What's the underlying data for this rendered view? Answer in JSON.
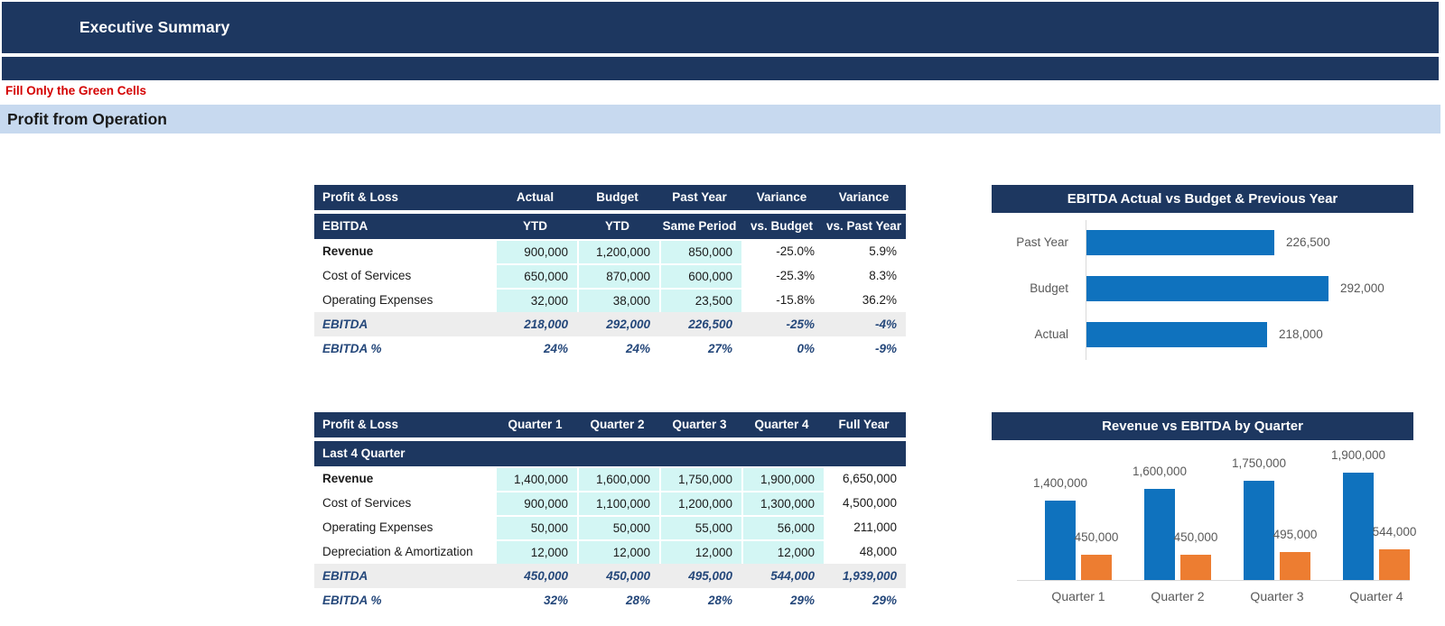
{
  "page": {
    "title": "Executive Summary",
    "note": "Fill Only the Green Cells",
    "section": "Profit from Operation"
  },
  "colors": {
    "header_navy": "#1d3760",
    "section_band_blue": "#c7d9ef",
    "note_red": "#d40000",
    "input_cell_cyan": "#d3f6f4",
    "total_row_gray": "#ededed",
    "total_text_navy": "#24477a",
    "chart_blue": "#0f72be",
    "chart_orange": "#ed7d31",
    "chart_text_gray": "#595959"
  },
  "ytd_table": {
    "headers": [
      "Profit & Loss",
      "Actual",
      "Budget",
      "Past Year",
      "Variance",
      "Variance"
    ],
    "subheaders": [
      "EBITDA",
      "YTD",
      "YTD",
      "Same Period",
      "vs. Budget",
      "vs. Past Year"
    ],
    "rows": [
      {
        "label": "Revenue",
        "cells": [
          "900,000",
          "1,200,000",
          "850,000",
          "-25.0%",
          "5.9%"
        ]
      },
      {
        "label": "Cost of Services",
        "cells": [
          "650,000",
          "870,000",
          "600,000",
          "-25.3%",
          "8.3%"
        ]
      },
      {
        "label": "Operating Expenses",
        "cells": [
          "32,000",
          "38,000",
          "23,500",
          "-15.8%",
          "36.2%"
        ]
      },
      {
        "label": "EBITDA",
        "cells": [
          "218,000",
          "292,000",
          "226,500",
          "-25%",
          "-4%"
        ]
      },
      {
        "label": "EBITDA %",
        "cells": [
          "24%",
          "24%",
          "27%",
          "0%",
          "-9%"
        ]
      }
    ]
  },
  "quarter_table": {
    "headers": [
      "Profit & Loss",
      "Quarter 1",
      "Quarter 2",
      "Quarter 3",
      "Quarter 4",
      "Full Year"
    ],
    "subheaders": [
      "Last 4 Quarter",
      "",
      "",
      "",
      "",
      ""
    ],
    "rows": [
      {
        "label": "Revenue",
        "cells": [
          "1,400,000",
          "1,600,000",
          "1,750,000",
          "1,900,000",
          "6,650,000"
        ]
      },
      {
        "label": "Cost of Services",
        "cells": [
          "900,000",
          "1,100,000",
          "1,200,000",
          "1,300,000",
          "4,500,000"
        ]
      },
      {
        "label": "Operating Expenses",
        "cells": [
          "50,000",
          "50,000",
          "55,000",
          "56,000",
          "211,000"
        ]
      },
      {
        "label": "Depreciation & Amortization",
        "cells": [
          "12,000",
          "12,000",
          "12,000",
          "12,000",
          "48,000"
        ]
      },
      {
        "label": "EBITDA",
        "cells": [
          "450,000",
          "450,000",
          "495,000",
          "544,000",
          "1,939,000"
        ]
      },
      {
        "label": "EBITDA %",
        "cells": [
          "32%",
          "28%",
          "28%",
          "29%",
          "29%"
        ]
      }
    ]
  },
  "chart_data": [
    {
      "type": "bar",
      "orientation": "horizontal",
      "title": "EBITDA Actual vs Budget & Previous Year",
      "categories": [
        "Past Year",
        "Budget",
        "Actual"
      ],
      "values": [
        226500,
        292000,
        218000
      ],
      "labels": [
        "226,500",
        "292,000",
        "218,000"
      ],
      "bar_color": "#0f72be",
      "axis_max": 292000,
      "legend": "none",
      "grid": "off"
    },
    {
      "type": "bar",
      "orientation": "vertical",
      "title": "Revenue vs EBITDA by Quarter",
      "categories": [
        "Quarter 1",
        "Quarter 2",
        "Quarter 3",
        "Quarter 4"
      ],
      "series": [
        {
          "name": "Revenue",
          "color": "#0f72be",
          "values": [
            1400000,
            1600000,
            1750000,
            1900000
          ],
          "labels": [
            "1,400,000",
            "1,600,000",
            "1,750,000",
            "1,900,000"
          ]
        },
        {
          "name": "EBITDA",
          "color": "#ed7d31",
          "values": [
            450000,
            450000,
            495000,
            544000
          ],
          "labels": [
            "450,000",
            "450,000",
            "495,000",
            "544,000"
          ]
        }
      ],
      "ylim": [
        0,
        2000000
      ],
      "legend": "none",
      "grid": "off"
    }
  ]
}
